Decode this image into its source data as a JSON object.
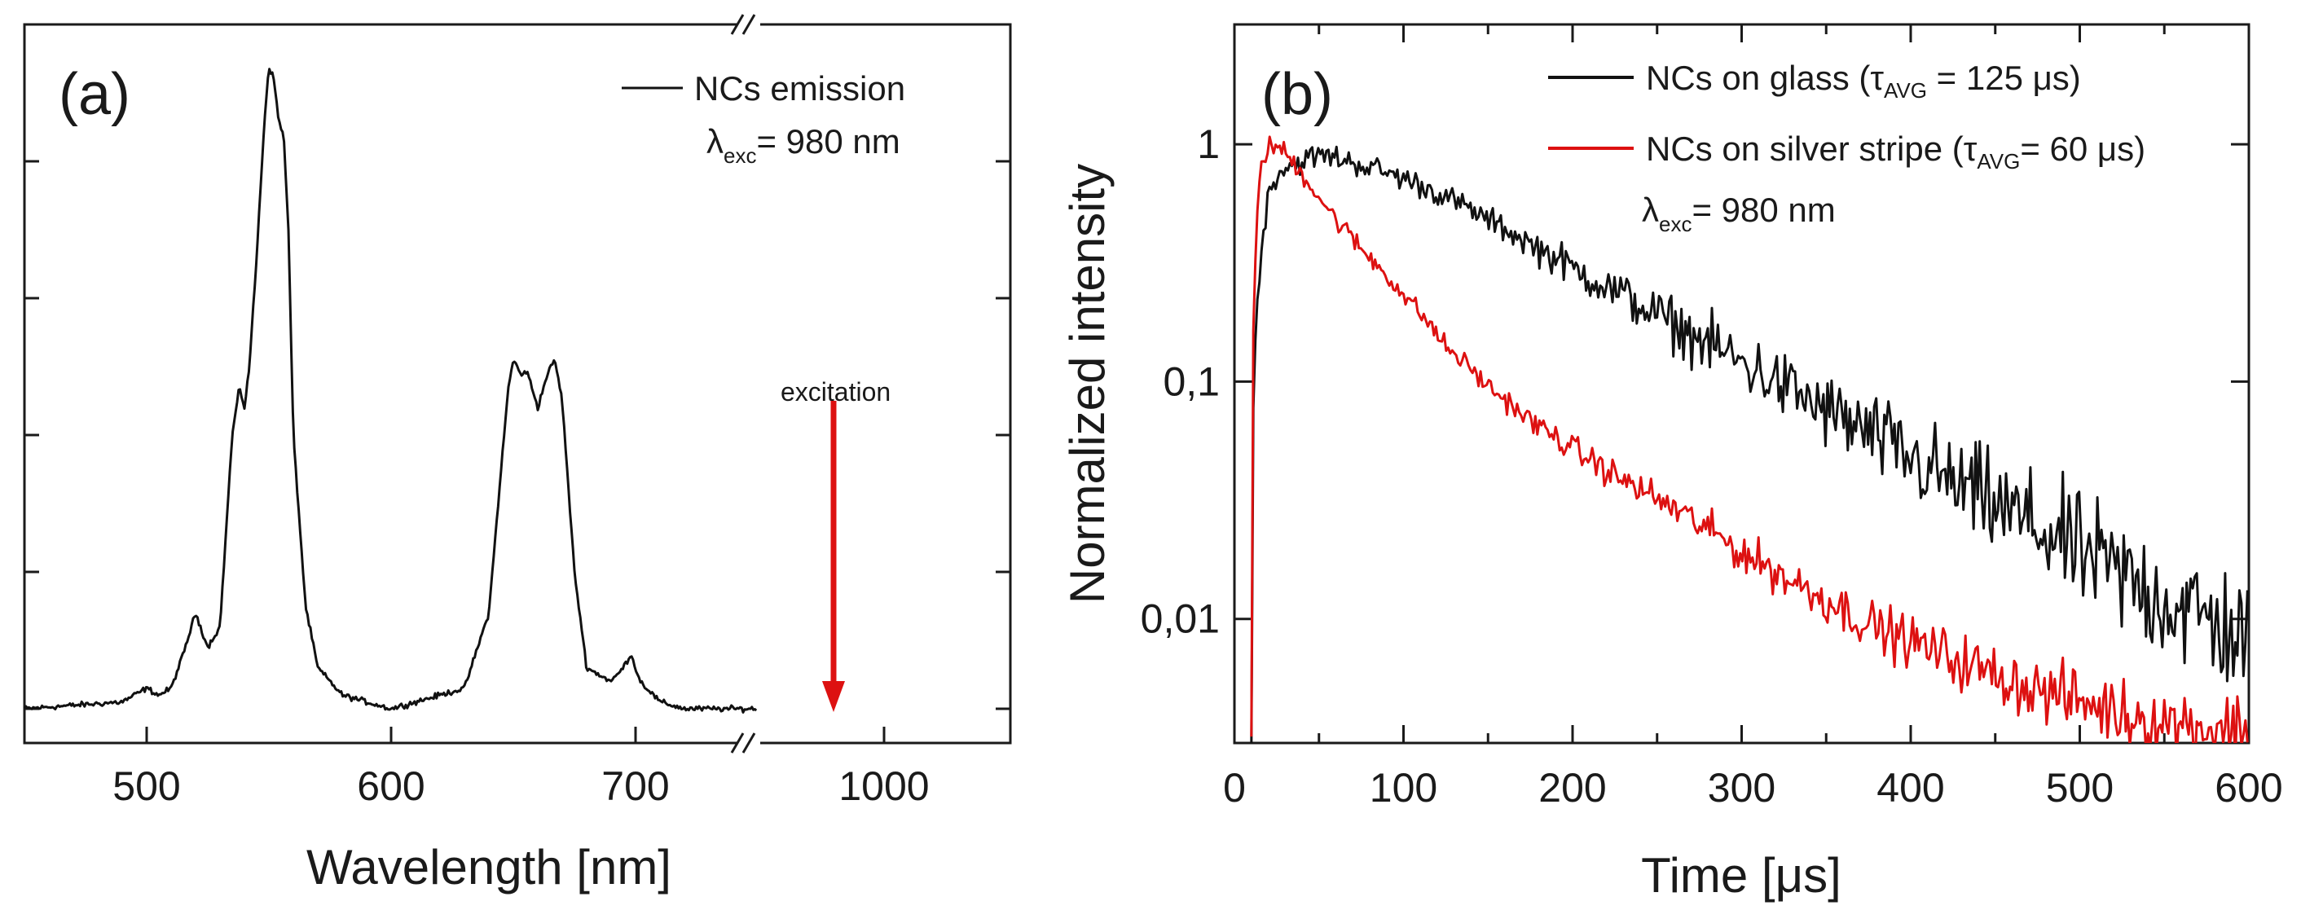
{
  "colors": {
    "black_series": "#111111",
    "red_series": "#dd1111",
    "arrow": "#dd1111"
  },
  "chart_data": [
    {
      "id": "a",
      "type": "line",
      "panel_label": "(a)",
      "xlabel": "Wavelength [nm]",
      "ylabel": "",
      "axis_break": {
        "between": [
          750,
          950
        ],
        "symbol": "//"
      },
      "xlim": [
        450,
        1050
      ],
      "xticks": [
        {
          "value": 500,
          "label": "500"
        },
        {
          "value": 600,
          "label": "600"
        },
        {
          "value": 700,
          "label": "700"
        },
        {
          "value": 1000,
          "label": "1000"
        }
      ],
      "ylim": [
        -0.05,
        1.0
      ],
      "y_ticks_unlabeled": [
        0.0,
        0.2,
        0.4,
        0.6,
        0.8,
        1.0
      ],
      "legend": {
        "label": "NCs emission",
        "position": "top-right",
        "excitation_symbol": "λ",
        "excitation_subscript": "exc",
        "excitation_value": "= 980 nm"
      },
      "annotation": {
        "text": "excitation",
        "arrow_x": 980,
        "arrow_y_from": 0.45,
        "arrow_y_to": 0.0
      },
      "series": [
        {
          "name": "NCs emission",
          "color": "#111111",
          "x": [
            450,
            490,
            500,
            505,
            510,
            515,
            520,
            525,
            530,
            535,
            538,
            540,
            542,
            545,
            548,
            550,
            552,
            554,
            556,
            558,
            560,
            565,
            570,
            580,
            600,
            630,
            640,
            645,
            648,
            650,
            653,
            656,
            660,
            664,
            667,
            670,
            675,
            680,
            690,
            695,
            698,
            702,
            710,
            720,
            750
          ],
          "y": [
            0.0,
            0.01,
            0.03,
            0.02,
            0.03,
            0.08,
            0.14,
            0.09,
            0.12,
            0.4,
            0.47,
            0.44,
            0.5,
            0.66,
            0.85,
            0.94,
            0.92,
            0.86,
            0.84,
            0.7,
            0.4,
            0.15,
            0.06,
            0.02,
            0.0,
            0.03,
            0.14,
            0.35,
            0.47,
            0.51,
            0.49,
            0.49,
            0.44,
            0.49,
            0.51,
            0.45,
            0.2,
            0.06,
            0.04,
            0.06,
            0.08,
            0.04,
            0.01,
            0.0,
            0.0
          ]
        }
      ]
    },
    {
      "id": "b",
      "type": "line",
      "panel_label": "(b)",
      "xlabel": "Time [μs]",
      "ylabel": "Normalized intensity",
      "yscale": "log",
      "xlim": [
        0,
        600
      ],
      "ylim": [
        0.003,
        3.2
      ],
      "xticks": [
        {
          "value": 0,
          "label": "0"
        },
        {
          "value": 100,
          "label": "100"
        },
        {
          "value": 200,
          "label": "200"
        },
        {
          "value": 300,
          "label": "300"
        },
        {
          "value": 400,
          "label": "400"
        },
        {
          "value": 500,
          "label": "500"
        },
        {
          "value": 600,
          "label": "600"
        }
      ],
      "yticks": [
        {
          "value": 0.01,
          "label": "0,01"
        },
        {
          "value": 0.1,
          "label": "0,1"
        },
        {
          "value": 1,
          "label": "1"
        }
      ],
      "legend": {
        "position": "top-right",
        "entries": [
          {
            "label_main": "NCs on glass (τ",
            "label_sub": "AVG",
            "label_tail": " = 125 μs)",
            "color": "#111111"
          },
          {
            "label_main": "NCs on silver stripe (τ",
            "label_sub": "AVG",
            "label_tail": "= 60 μs)",
            "color": "#dd1111"
          }
        ],
        "excitation_symbol": "λ",
        "excitation_subscript": "exc",
        "excitation_value": "= 980 nm"
      },
      "series": [
        {
          "name": "NCs on glass (τAVG = 125 μs)",
          "color": "#111111",
          "x": [
            10,
            15,
            20,
            25,
            30,
            40,
            50,
            60,
            80,
            100,
            125,
            150,
            175,
            200,
            225,
            250,
            275,
            300,
            325,
            350,
            375,
            400,
            425,
            450,
            475,
            500,
            525,
            550,
            575,
            600
          ],
          "y": [
            0.003,
            0.3,
            0.6,
            0.75,
            0.8,
            0.85,
            0.9,
            0.88,
            0.8,
            0.72,
            0.6,
            0.48,
            0.38,
            0.3,
            0.24,
            0.19,
            0.15,
            0.12,
            0.095,
            0.075,
            0.06,
            0.047,
            0.037,
            0.03,
            0.024,
            0.019,
            0.015,
            0.012,
            0.01,
            0.008
          ]
        },
        {
          "name": "NCs on silver stripe (τAVG= 60 μs)",
          "color": "#dd1111",
          "x": [
            10,
            13,
            16,
            20,
            25,
            30,
            40,
            50,
            60,
            75,
            100,
            125,
            150,
            175,
            200,
            225,
            250,
            275,
            300,
            325,
            350,
            375,
            400,
            425,
            450,
            475,
            500,
            525,
            550,
            575,
            600
          ],
          "y": [
            0.003,
            0.4,
            0.85,
            0.97,
            0.98,
            0.92,
            0.75,
            0.6,
            0.48,
            0.36,
            0.23,
            0.14,
            0.095,
            0.068,
            0.052,
            0.04,
            0.032,
            0.025,
            0.019,
            0.015,
            0.012,
            0.0095,
            0.008,
            0.0068,
            0.0058,
            0.005,
            0.0045,
            0.004,
            0.0037,
            0.0035,
            0.0035
          ]
        }
      ]
    }
  ]
}
